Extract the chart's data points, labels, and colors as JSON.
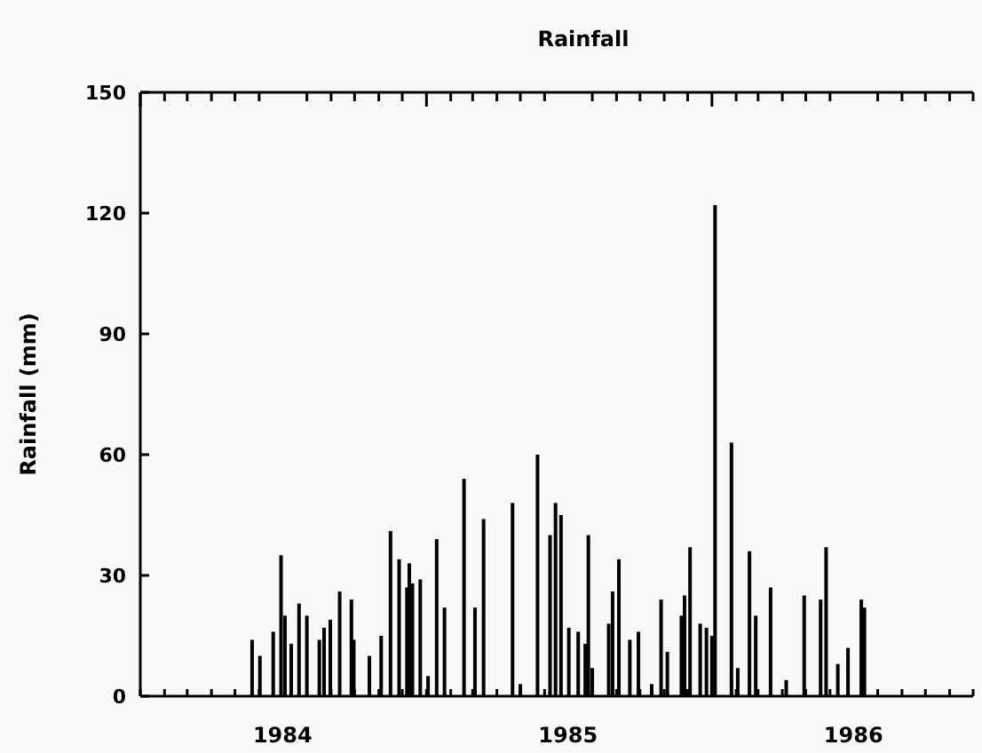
{
  "chart_data": {
    "type": "bar",
    "title": "Rainfall",
    "ylabel": "Rainfall (mm)",
    "color": "#000000",
    "x": [
      "1984-05-23",
      "1984-06-02",
      "1984-06-19",
      "1984-06-29",
      "1984-07-04",
      "1984-07-12",
      "1984-07-22",
      "1984-08-01",
      "1984-08-17",
      "1984-08-23",
      "1984-08-31",
      "1984-09-12",
      "1984-09-27",
      "1984-09-30",
      "1984-10-20",
      "1984-11-04",
      "1984-11-16",
      "1984-11-27",
      "1984-12-07",
      "1984-12-10",
      "1984-12-14",
      "1984-12-24",
      "1985-01-03",
      "1985-01-14",
      "1985-01-24",
      "1985-02-18",
      "1985-03-04",
      "1985-03-15",
      "1985-04-21",
      "1985-05-01",
      "1985-05-23",
      "1985-06-08",
      "1985-06-15",
      "1985-06-22",
      "1985-07-02",
      "1985-07-14",
      "1985-07-23",
      "1985-07-27",
      "1985-08-01",
      "1985-08-22",
      "1985-08-27",
      "1985-09-04",
      "1985-09-18",
      "1985-09-29",
      "1985-10-16",
      "1985-10-28",
      "1985-11-05",
      "1985-11-23",
      "1985-11-27",
      "1985-12-04",
      "1985-12-17",
      "1985-12-25",
      "1986-01-01",
      "1986-01-05",
      "1986-01-26",
      "1986-02-03",
      "1986-02-18",
      "1986-02-26",
      "1986-03-17",
      "1986-04-06",
      "1986-04-29",
      "1986-05-20",
      "1986-05-27",
      "1986-06-11",
      "1986-06-24",
      "1986-07-11",
      "1986-07-15"
    ],
    "values": [
      14,
      10,
      16,
      35,
      20,
      13,
      23,
      20,
      14,
      17,
      19,
      26,
      24,
      14,
      10,
      15,
      41,
      34,
      27,
      33,
      28,
      29,
      5,
      39,
      22,
      54,
      22,
      44,
      48,
      3,
      60,
      40,
      48,
      45,
      17,
      16,
      13,
      40,
      7,
      18,
      26,
      34,
      14,
      16,
      3,
      24,
      11,
      20,
      25,
      37,
      18,
      17,
      15,
      122,
      63,
      7,
      36,
      20,
      27,
      4,
      25,
      24,
      37,
      8,
      12,
      24,
      22
    ],
    "xlim": [
      "1984-01-01",
      "1986-12-01"
    ],
    "xticks": [
      {
        "value": "1984-01-01",
        "label": null
      },
      {
        "value": "1984-02-01",
        "label": null
      },
      {
        "value": "1984-03-01",
        "label": null
      },
      {
        "value": "1984-04-01",
        "label": null
      },
      {
        "value": "1984-05-01",
        "label": null
      },
      {
        "value": "1984-06-01",
        "label": null
      },
      {
        "value": "1984-07-01",
        "label": "1984"
      },
      {
        "value": "1984-08-01",
        "label": null
      },
      {
        "value": "1984-09-01",
        "label": null
      },
      {
        "value": "1984-10-01",
        "label": null
      },
      {
        "value": "1984-11-01",
        "label": null
      },
      {
        "value": "1984-12-01",
        "label": null
      },
      {
        "value": "1985-01-01",
        "label": null
      },
      {
        "value": "1985-02-01",
        "label": null
      },
      {
        "value": "1985-03-01",
        "label": null
      },
      {
        "value": "1985-04-01",
        "label": null
      },
      {
        "value": "1985-05-01",
        "label": null
      },
      {
        "value": "1985-06-01",
        "label": null
      },
      {
        "value": "1985-07-01",
        "label": "1985"
      },
      {
        "value": "1985-08-01",
        "label": null
      },
      {
        "value": "1985-09-01",
        "label": null
      },
      {
        "value": "1985-10-01",
        "label": null
      },
      {
        "value": "1985-11-01",
        "label": null
      },
      {
        "value": "1985-12-01",
        "label": null
      },
      {
        "value": "1986-01-01",
        "label": null
      },
      {
        "value": "1986-02-01",
        "label": null
      },
      {
        "value": "1986-03-01",
        "label": null
      },
      {
        "value": "1986-04-01",
        "label": null
      },
      {
        "value": "1986-05-01",
        "label": null
      },
      {
        "value": "1986-06-01",
        "label": null
      },
      {
        "value": "1986-07-01",
        "label": "1986"
      },
      {
        "value": "1986-08-01",
        "label": null
      },
      {
        "value": "1986-09-01",
        "label": null
      },
      {
        "value": "1986-10-01",
        "label": null
      },
      {
        "value": "1986-11-01",
        "label": null
      },
      {
        "value": "1986-12-01",
        "label": null
      }
    ],
    "ylim": [
      0,
      150
    ],
    "yticks": [
      0,
      30,
      60,
      90,
      120,
      150
    ],
    "grid": false
  }
}
